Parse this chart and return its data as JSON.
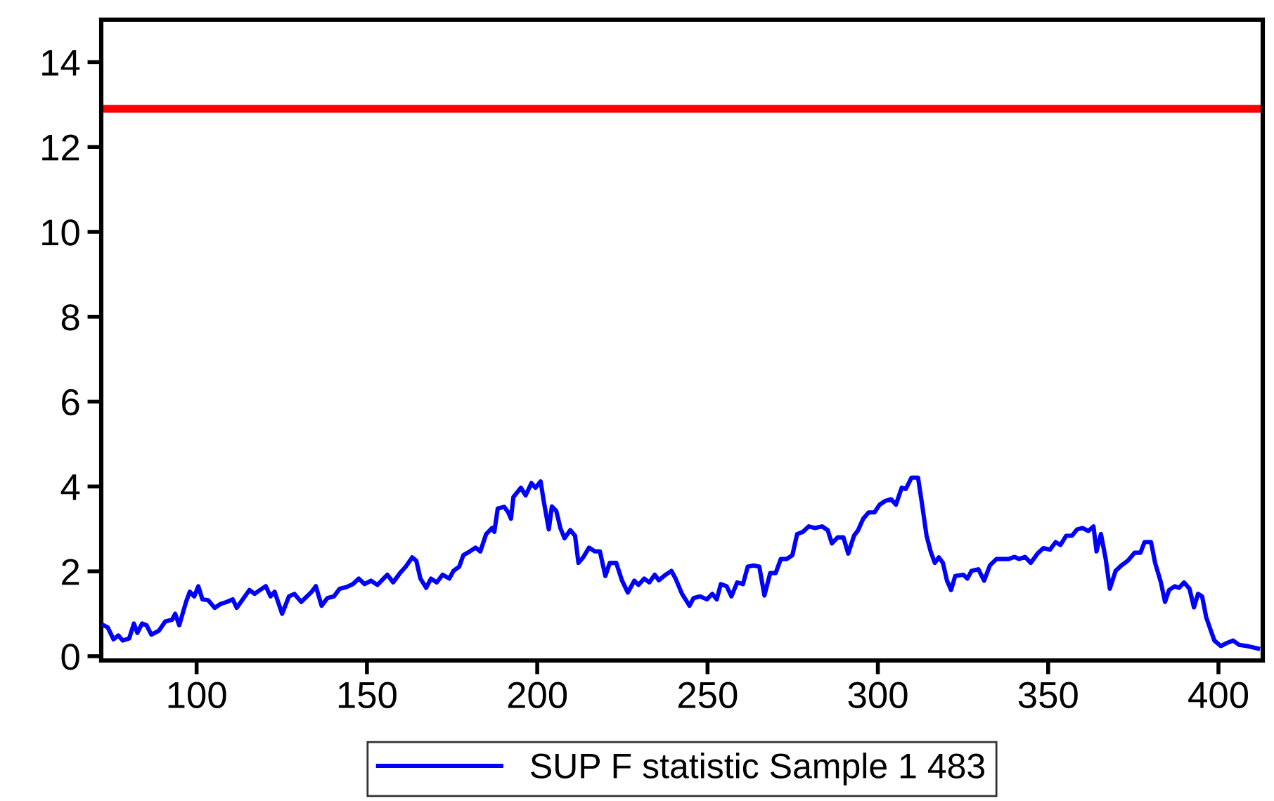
{
  "chart_data": {
    "type": "line",
    "xlim": [
      72,
      413
    ],
    "ylim": [
      -0.1,
      15
    ],
    "xticks": [
      100,
      150,
      200,
      250,
      300,
      350,
      400
    ],
    "yticks": [
      0,
      2,
      4,
      6,
      8,
      10,
      12,
      14
    ],
    "grid": false,
    "legend": "bottom",
    "marker": "none",
    "line_style": "solid",
    "ref_lines": [
      {
        "axis": "y",
        "value": 12.9,
        "color": "#ff0000",
        "line_style": "solid"
      }
    ],
    "series": [
      {
        "name": "SUP F statistic Sample 1 483",
        "color": "#0000ff",
        "x": [
          72.7,
          73.9,
          75.6,
          77,
          78.3,
          80.2,
          81.6,
          82.6,
          84,
          85.3,
          86.7,
          88.9,
          90.8,
          92.8,
          93.7,
          94.9,
          96.9,
          98,
          99.3,
          100.5,
          101.7,
          103.4,
          105.3,
          107,
          108.9,
          110.6,
          111.8,
          113.8,
          115.5,
          117,
          118.6,
          120.3,
          121.7,
          122.9,
          125.1,
          127.1,
          128.7,
          130.7,
          132.4,
          133.8,
          135,
          136.7,
          138.4,
          140.3,
          142,
          144,
          145.9,
          147.6,
          149.3,
          151.2,
          153.1,
          156,
          157.7,
          159.7,
          161.4,
          163.3,
          164.5,
          165.7,
          167.4,
          168.8,
          170.5,
          172.2,
          174.2,
          175.4,
          177.1,
          178.3,
          180.2,
          181.9,
          183.3,
          185,
          186.7,
          187.4,
          188.4,
          190.3,
          191.5,
          192.3,
          193,
          195.2,
          196.6,
          198.3,
          199.5,
          201,
          201.9,
          203.4,
          204.3,
          205.6,
          206.8,
          208,
          209.7,
          211.1,
          212.1,
          213.5,
          215.2,
          216.9,
          218.4,
          220,
          221.3,
          223.2,
          224.9,
          226.6,
          228.5,
          229.7,
          231.4,
          232.9,
          234.5,
          235.7,
          237.7,
          239.4,
          240.6,
          242.5,
          244.7,
          245.9,
          247.8,
          249.8,
          251.4,
          252.7,
          253.9,
          255.6,
          257,
          258.7,
          260.4,
          261.8,
          263.5,
          265.2,
          266.7,
          268.4,
          270,
          271.5,
          273.2,
          274.9,
          276.3,
          278,
          279.7,
          281.6,
          283.6,
          285.3,
          286.5,
          288.2,
          289.9,
          291.3,
          293,
          294.2,
          295.7,
          297.3,
          299,
          300.5,
          302.2,
          303.9,
          305.3,
          307,
          308.2,
          309.9,
          311.8,
          313,
          314.3,
          315.5,
          316.7,
          317.9,
          319.1,
          320.3,
          321.5,
          322.7,
          325.1,
          326.3,
          327.5,
          329.5,
          331.2,
          332.9,
          334.8,
          336.7,
          338.4,
          340.1,
          341.5,
          343.2,
          344.9,
          346.9,
          348.6,
          350.5,
          352.2,
          353.6,
          355.3,
          357,
          358.5,
          360.1,
          361.8,
          363.3,
          364.2,
          365.5,
          366.9,
          368.1,
          369.8,
          371.5,
          373.4,
          375.4,
          377.1,
          378.3,
          380.2,
          381.4,
          383.1,
          384.3,
          385.5,
          387.2,
          388.4,
          389.9,
          391.5,
          392.8,
          394,
          395.2,
          396.4,
          397.6,
          398.8,
          400.7,
          402.4,
          404.3,
          406,
          408.4,
          411.6
        ],
        "values": [
          0.73,
          0.68,
          0.4,
          0.49,
          0.37,
          0.42,
          0.77,
          0.55,
          0.77,
          0.73,
          0.51,
          0.6,
          0.82,
          0.86,
          1.0,
          0.73,
          1.28,
          1.52,
          1.41,
          1.65,
          1.34,
          1.32,
          1.14,
          1.23,
          1.28,
          1.34,
          1.14,
          1.37,
          1.56,
          1.47,
          1.56,
          1.65,
          1.41,
          1.52,
          1.0,
          1.41,
          1.47,
          1.28,
          1.41,
          1.52,
          1.65,
          1.19,
          1.37,
          1.41,
          1.59,
          1.63,
          1.7,
          1.83,
          1.7,
          1.78,
          1.68,
          1.92,
          1.74,
          1.96,
          2.11,
          2.33,
          2.25,
          1.83,
          1.61,
          1.83,
          1.74,
          1.92,
          1.83,
          2.01,
          2.11,
          2.38,
          2.47,
          2.56,
          2.47,
          2.88,
          3.02,
          2.93,
          3.48,
          3.52,
          3.39,
          3.24,
          3.75,
          3.97,
          3.79,
          4.08,
          3.97,
          4.12,
          3.66,
          2.99,
          3.53,
          3.42,
          3.02,
          2.78,
          2.97,
          2.84,
          2.2,
          2.33,
          2.56,
          2.47,
          2.47,
          1.89,
          2.2,
          2.2,
          1.78,
          1.5,
          1.78,
          1.68,
          1.83,
          1.74,
          1.92,
          1.79,
          1.92,
          2.01,
          1.83,
          1.47,
          1.19,
          1.37,
          1.41,
          1.34,
          1.47,
          1.34,
          1.7,
          1.65,
          1.41,
          1.74,
          1.7,
          2.11,
          2.14,
          2.11,
          1.43,
          1.96,
          1.96,
          2.29,
          2.29,
          2.38,
          2.88,
          2.93,
          3.06,
          3.02,
          3.06,
          2.97,
          2.66,
          2.8,
          2.8,
          2.42,
          2.84,
          2.97,
          3.24,
          3.39,
          3.39,
          3.57,
          3.66,
          3.7,
          3.57,
          3.97,
          3.94,
          4.21,
          4.21,
          3.57,
          2.84,
          2.47,
          2.2,
          2.33,
          2.2,
          1.78,
          1.56,
          1.89,
          1.92,
          1.83,
          2.01,
          2.05,
          1.78,
          2.14,
          2.29,
          2.29,
          2.29,
          2.34,
          2.29,
          2.34,
          2.2,
          2.42,
          2.55,
          2.51,
          2.69,
          2.62,
          2.84,
          2.84,
          2.99,
          3.02,
          2.95,
          3.06,
          2.47,
          2.88,
          2.29,
          1.59,
          2.01,
          2.14,
          2.25,
          2.44,
          2.44,
          2.69,
          2.69,
          2.2,
          1.74,
          1.28,
          1.56,
          1.65,
          1.61,
          1.74,
          1.59,
          1.15,
          1.47,
          1.41,
          0.92,
          0.64,
          0.37,
          0.24,
          0.31,
          0.37,
          0.27,
          0.24,
          0.18
        ]
      }
    ]
  }
}
